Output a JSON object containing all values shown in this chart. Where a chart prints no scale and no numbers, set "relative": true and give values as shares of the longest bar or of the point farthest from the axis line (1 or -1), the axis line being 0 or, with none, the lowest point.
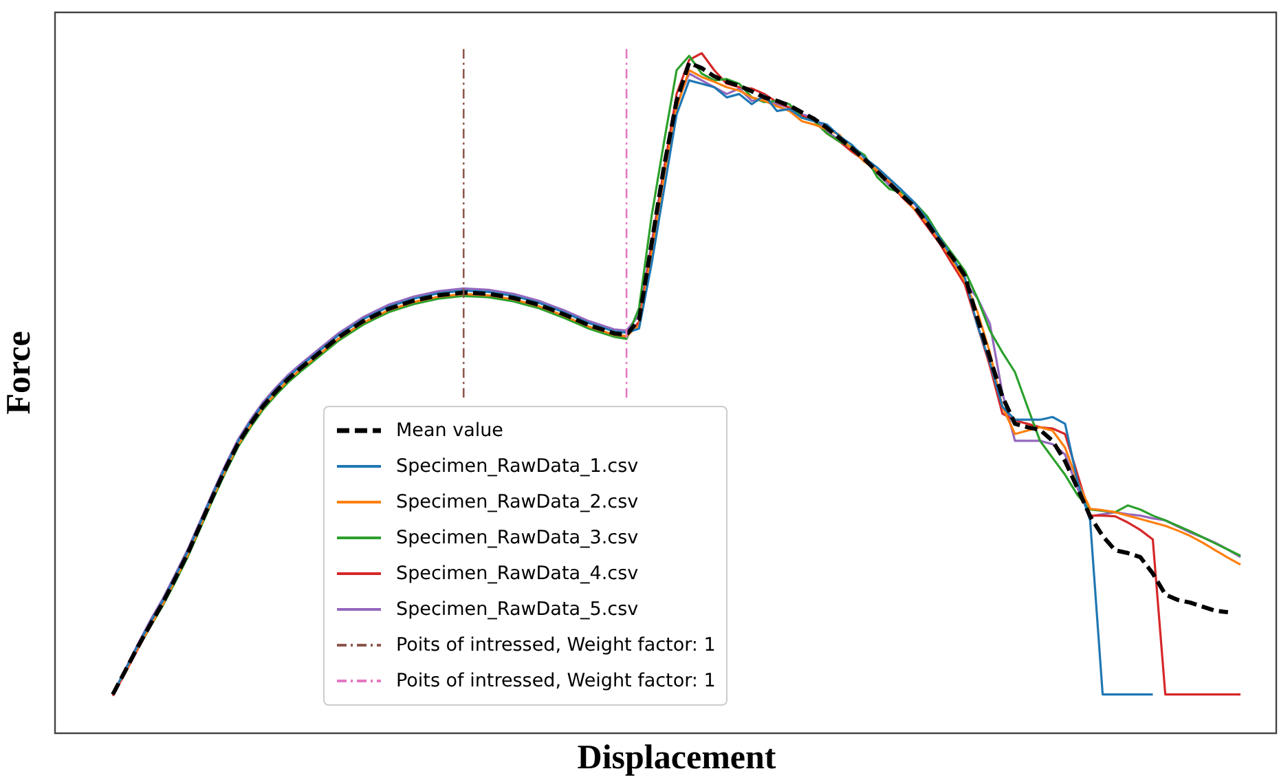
{
  "chart_data": {
    "type": "line",
    "xlabel": "Displacement",
    "ylabel": "Force",
    "relative": true,
    "marker": "none",
    "legend": "bottom",
    "categories": [
      null,
      null,
      null,
      null,
      null,
      null,
      null,
      null,
      null,
      null,
      null,
      null,
      null,
      null,
      null,
      null,
      null,
      null,
      null,
      null,
      null,
      null,
      null,
      null,
      null,
      null,
      null,
      null,
      null,
      null,
      null,
      null,
      null,
      null,
      null,
      null,
      null,
      null,
      null,
      null,
      null,
      null,
      null,
      null,
      null,
      null,
      null,
      null,
      null,
      null,
      null,
      null,
      null,
      null,
      null,
      null,
      null,
      null,
      null,
      null,
      null,
      null,
      null,
      null,
      null,
      null,
      null,
      null,
      null,
      null,
      null,
      null,
      null,
      null,
      null,
      null,
      null,
      null,
      null,
      null,
      null,
      null,
      null,
      null,
      null,
      null,
      null,
      null,
      null,
      null,
      null
    ],
    "series": [
      {
        "name": "Mean value",
        "color": "#000000",
        "line_style": "dashed",
        "values": [
          0.057,
          0.092,
          0.127,
          0.16,
          0.192,
          0.228,
          0.265,
          0.307,
          0.349,
          0.389,
          0.426,
          0.455,
          0.481,
          0.502,
          0.521,
          0.537,
          0.552,
          0.567,
          0.582,
          0.594,
          0.606,
          0.615,
          0.624,
          0.63,
          0.636,
          0.64,
          0.644,
          0.646,
          0.648,
          0.647,
          0.646,
          0.643,
          0.64,
          0.635,
          0.63,
          0.623,
          0.616,
          0.608,
          0.6,
          0.594,
          0.588,
          0.586,
          0.608,
          0.72,
          0.834,
          0.93,
          0.986,
          0.978,
          0.966,
          0.958,
          0.952,
          0.944,
          0.935,
          0.93,
          0.923,
          0.913,
          0.903,
          0.89,
          0.875,
          0.86,
          0.844,
          0.826,
          0.808,
          0.791,
          0.774,
          0.75,
          0.723,
          0.7,
          0.673,
          0.61,
          0.552,
          0.495,
          0.455,
          0.45,
          0.446,
          0.43,
          0.4,
          0.36,
          0.319,
          0.29,
          0.269,
          0.265,
          0.259,
          0.235,
          0.204,
          0.196,
          0.192,
          0.186,
          0.18,
          0.178,
          null
        ]
      },
      {
        "name": "Specimen_RawData_1.csv",
        "color": "#1f77b4",
        "line_style": "solid",
        "values": [
          0.057,
          0.093,
          0.129,
          0.163,
          0.195,
          0.231,
          0.268,
          0.31,
          0.352,
          0.392,
          0.429,
          0.458,
          0.484,
          0.505,
          0.524,
          0.54,
          0.555,
          0.57,
          0.585,
          0.597,
          0.609,
          0.618,
          0.627,
          0.633,
          0.639,
          0.643,
          0.647,
          0.649,
          0.651,
          0.65,
          0.649,
          0.646,
          0.643,
          0.638,
          0.633,
          0.626,
          0.619,
          0.611,
          0.603,
          0.597,
          0.591,
          0.589,
          0.595,
          0.69,
          0.8,
          0.91,
          0.96,
          0.955,
          0.95,
          0.935,
          0.94,
          0.925,
          0.938,
          0.915,
          0.918,
          0.905,
          0.9,
          0.895,
          0.878,
          0.865,
          0.846,
          0.832,
          0.815,
          0.798,
          0.78,
          0.755,
          0.728,
          0.7,
          0.67,
          0.6,
          0.545,
          0.48,
          0.461,
          0.461,
          0.461,
          0.465,
          0.455,
          0.37,
          0.313,
          0.057,
          0.057,
          0.057,
          0.057,
          0.057,
          null,
          null,
          null,
          null,
          null,
          null,
          null
        ]
      },
      {
        "name": "Specimen_RawData_2.csv",
        "color": "#ff7f0e",
        "line_style": "solid",
        "values": [
          0.057,
          0.091,
          0.126,
          0.158,
          0.19,
          0.226,
          0.263,
          0.305,
          0.347,
          0.387,
          0.424,
          0.453,
          0.479,
          0.5,
          0.519,
          0.535,
          0.55,
          0.565,
          0.58,
          0.592,
          0.604,
          0.613,
          0.622,
          0.628,
          0.634,
          0.638,
          0.642,
          0.644,
          0.646,
          0.645,
          0.644,
          0.641,
          0.638,
          0.633,
          0.628,
          0.621,
          0.614,
          0.606,
          0.598,
          0.592,
          0.586,
          0.584,
          0.6,
          0.705,
          0.82,
          0.92,
          0.975,
          0.965,
          0.958,
          0.95,
          0.945,
          0.935,
          0.93,
          0.922,
          0.915,
          0.9,
          0.895,
          0.888,
          0.88,
          0.858,
          0.84,
          0.828,
          0.812,
          0.79,
          0.77,
          0.75,
          0.725,
          0.695,
          0.665,
          0.62,
          0.56,
          0.48,
          0.44,
          0.445,
          0.45,
          0.445,
          0.42,
          0.37,
          0.33,
          0.328,
          0.325,
          0.32,
          0.315,
          0.31,
          0.305,
          0.298,
          0.29,
          0.28,
          0.269,
          0.258,
          0.248
        ]
      },
      {
        "name": "Specimen_RawData_3.csv",
        "color": "#2ca02c",
        "line_style": "solid",
        "values": [
          null,
          null,
          0.125,
          0.157,
          0.188,
          0.223,
          0.26,
          0.302,
          0.344,
          0.384,
          0.421,
          0.45,
          0.476,
          0.497,
          0.516,
          0.532,
          0.547,
          0.562,
          0.577,
          0.589,
          0.601,
          0.61,
          0.619,
          0.625,
          0.631,
          0.635,
          0.639,
          0.641,
          0.643,
          0.642,
          0.641,
          0.638,
          0.635,
          0.63,
          0.625,
          0.618,
          0.611,
          0.603,
          0.595,
          0.589,
          0.583,
          0.58,
          0.625,
          0.76,
          0.87,
          0.975,
          0.996,
          0.97,
          0.96,
          0.962,
          0.955,
          0.935,
          0.928,
          0.93,
          0.925,
          0.905,
          0.9,
          0.882,
          0.87,
          0.862,
          0.85,
          0.818,
          0.8,
          0.795,
          0.78,
          0.76,
          0.73,
          0.705,
          0.68,
          0.64,
          0.592,
          0.56,
          0.531,
          0.48,
          0.43,
          0.405,
          0.38,
          0.35,
          0.329,
          0.327,
          0.325,
          0.335,
          0.329,
          0.32,
          0.313,
          0.305,
          0.297,
          0.288,
          0.279,
          0.27,
          0.261
        ]
      },
      {
        "name": "Specimen_RawData_4.csv",
        "color": "#d62728",
        "line_style": "solid",
        "values": [
          0.055,
          0.089,
          0.124,
          0.157,
          0.189,
          0.225,
          0.262,
          0.304,
          0.346,
          0.386,
          0.423,
          0.452,
          0.478,
          0.499,
          0.518,
          0.534,
          0.549,
          0.564,
          0.579,
          0.591,
          0.603,
          0.612,
          0.621,
          0.627,
          0.633,
          0.637,
          0.641,
          0.643,
          0.645,
          0.644,
          0.643,
          0.64,
          0.637,
          0.632,
          0.627,
          0.62,
          0.613,
          0.605,
          0.597,
          0.591,
          0.585,
          0.583,
          0.605,
          0.715,
          0.83,
          0.94,
          0.99,
          1.0,
          0.975,
          0.955,
          0.95,
          0.948,
          0.94,
          0.928,
          0.92,
          0.908,
          0.9,
          0.882,
          0.87,
          0.855,
          0.842,
          0.825,
          0.81,
          0.788,
          0.77,
          0.745,
          0.72,
          0.69,
          0.66,
          0.6,
          0.54,
          0.47,
          0.46,
          0.455,
          0.45,
          0.448,
          0.44,
          0.38,
          0.32,
          0.32,
          0.319,
          0.31,
          0.299,
          0.285,
          0.057,
          0.057,
          0.057,
          0.057,
          0.057,
          0.057,
          0.057
        ]
      },
      {
        "name": "Specimen_RawData_5.csv",
        "color": "#9467bd",
        "line_style": "solid",
        "values": [
          0.057,
          0.094,
          0.131,
          0.166,
          0.198,
          0.234,
          0.271,
          0.313,
          0.355,
          0.395,
          0.432,
          0.461,
          0.487,
          0.508,
          0.527,
          0.543,
          0.558,
          0.573,
          0.588,
          0.6,
          0.612,
          0.621,
          0.63,
          0.636,
          0.642,
          0.646,
          0.65,
          0.652,
          0.654,
          0.653,
          0.652,
          0.649,
          0.646,
          0.641,
          0.636,
          0.629,
          0.622,
          0.614,
          0.606,
          0.6,
          0.594,
          0.592,
          0.615,
          0.72,
          0.83,
          0.925,
          0.97,
          0.96,
          0.95,
          0.94,
          0.948,
          0.93,
          0.932,
          0.925,
          0.92,
          0.91,
          0.905,
          0.885,
          0.872,
          0.86,
          0.848,
          0.825,
          0.805,
          0.79,
          0.778,
          0.75,
          0.72,
          0.69,
          0.663,
          0.64,
          0.602,
          0.5,
          0.43,
          0.43,
          0.43,
          0.425,
          0.41,
          0.36,
          0.319,
          0.322,
          0.325,
          0.322,
          0.32,
          0.316,
          0.313,
          0.304,
          0.295,
          0.288,
          0.28,
          0.27,
          0.259
        ]
      }
    ],
    "annotations": [
      "Poits of intressed, Weight factor: 1",
      "Poits of intressed, Weight factor: 1"
    ]
  }
}
